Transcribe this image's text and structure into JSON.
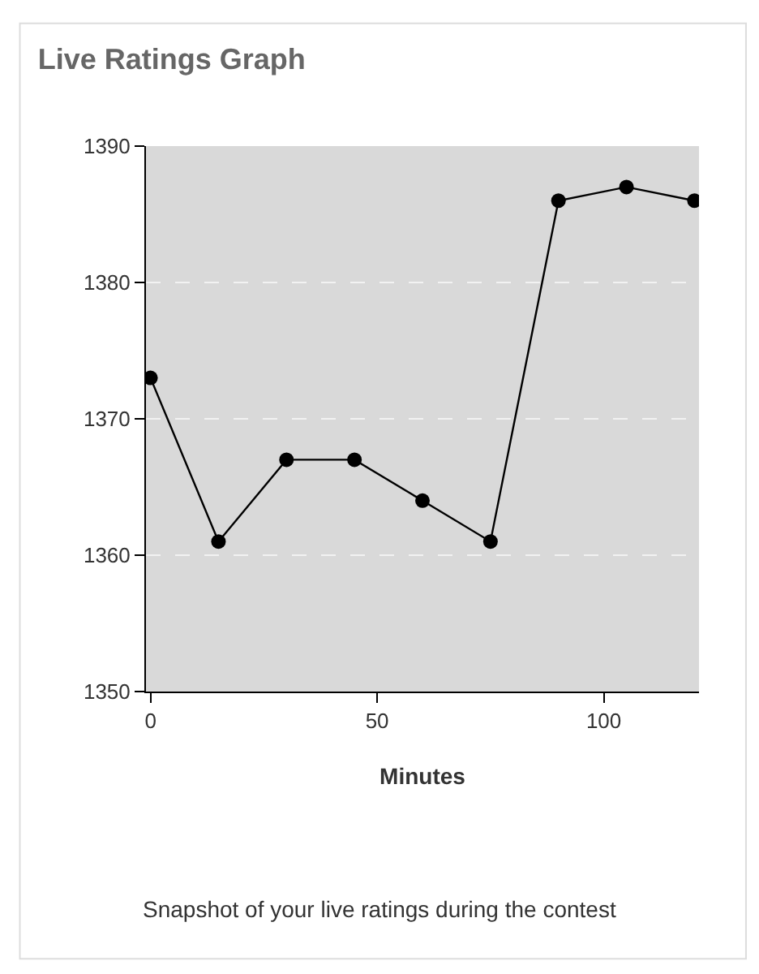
{
  "chart_data": {
    "type": "line",
    "title": "Live Ratings Graph",
    "xlabel": "Minutes",
    "x": [
      0,
      15,
      30,
      45,
      60,
      75,
      90,
      105,
      120
    ],
    "values": [
      1373,
      1361,
      1367,
      1367,
      1364,
      1361,
      1386,
      1387,
      1386
    ],
    "color": "#000000",
    "marker": "circle",
    "line_style": "solid",
    "xlim": [
      -1,
      121
    ],
    "xticks": [
      0,
      50,
      100
    ],
    "ylim": [
      1350,
      1390
    ],
    "yticks": [
      1350,
      1360,
      1370,
      1380,
      1390
    ],
    "grid": "y",
    "legend": false,
    "annotations": [
      "Snapshot of your live ratings during the contest"
    ]
  }
}
